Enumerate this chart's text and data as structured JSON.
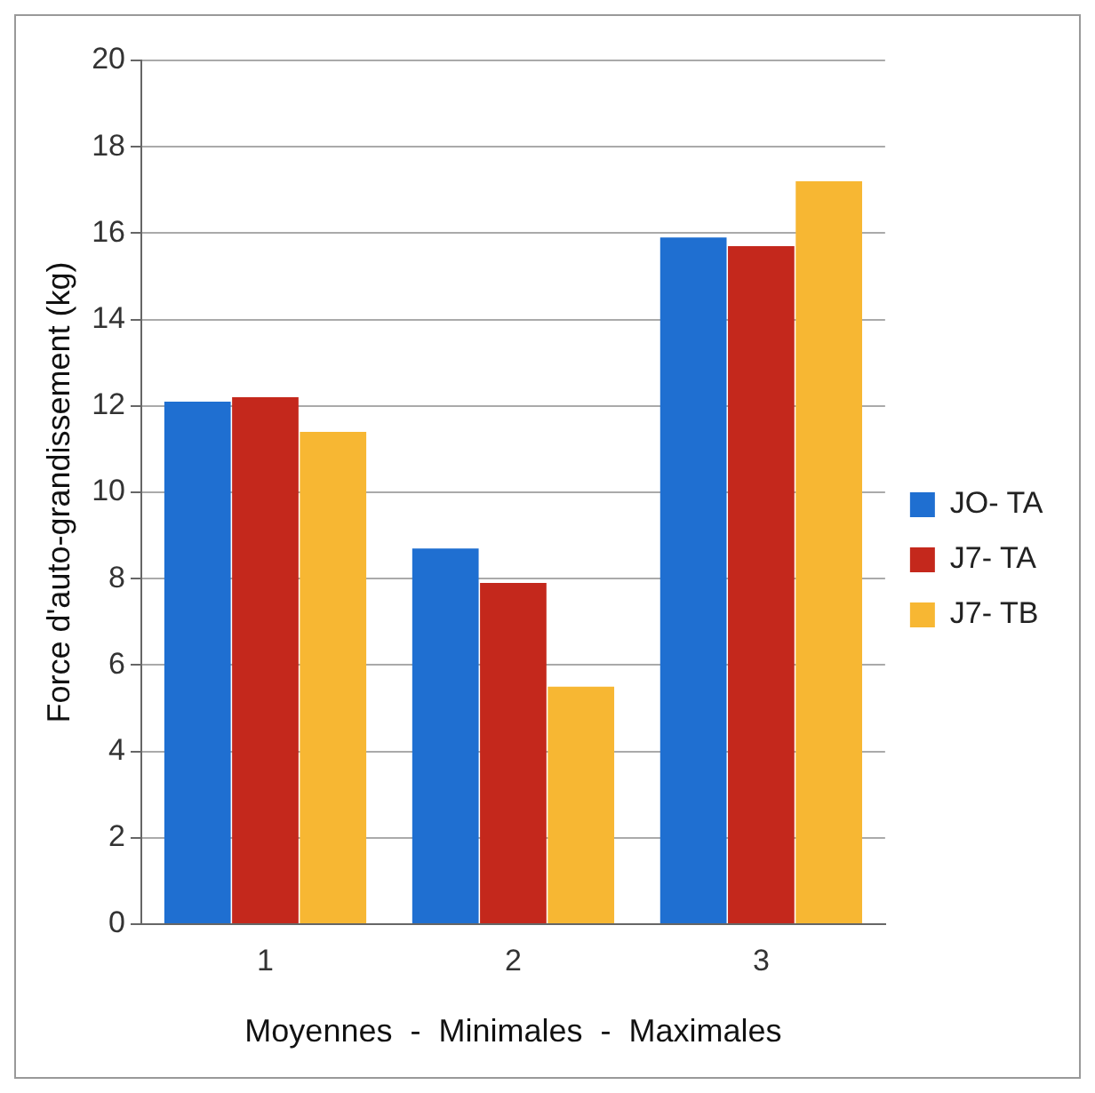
{
  "chart_data": {
    "type": "bar",
    "xlabel": "Moyennes  -  Minimales  -  Maximales",
    "ylabel": "Force d'auto-grandissement (kg)",
    "categories": [
      "1",
      "2",
      "3"
    ],
    "series": [
      {
        "name": "JO- TA",
        "color": "#1f6fd1",
        "values": [
          12.1,
          8.7,
          15.9
        ]
      },
      {
        "name": "J7- TA",
        "color": "#c4281c",
        "values": [
          12.2,
          7.9,
          15.7
        ]
      },
      {
        "name": "J7- TB",
        "color": "#f7b733",
        "values": [
          11.4,
          5.5,
          17.2
        ]
      }
    ],
    "ylim": [
      0,
      20
    ],
    "yticks": [
      0,
      2,
      4,
      6,
      8,
      10,
      12,
      14,
      16,
      18,
      20
    ],
    "grid": "y",
    "legend": "right"
  }
}
